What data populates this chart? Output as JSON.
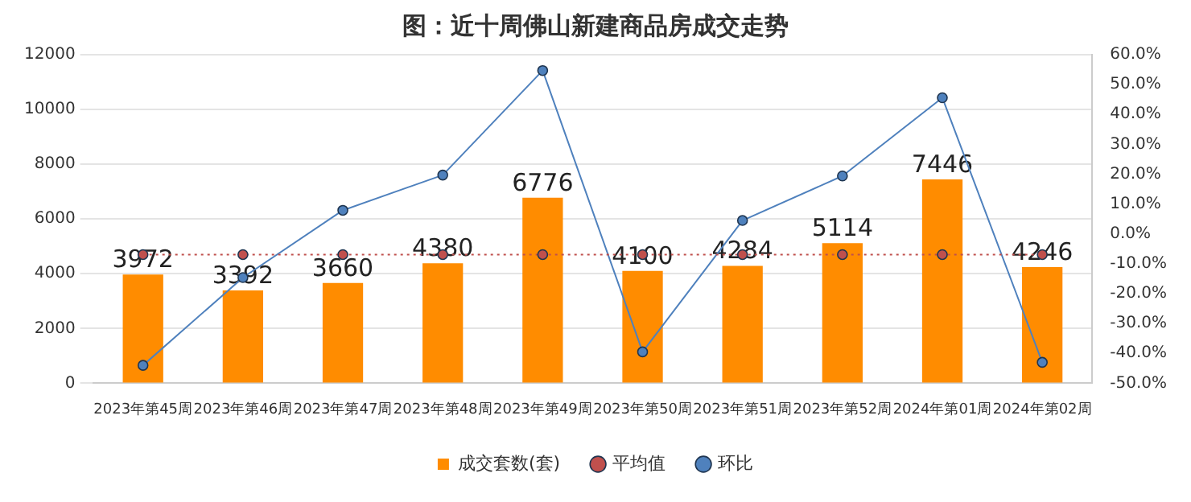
{
  "chart_data": {
    "type": "bar",
    "title": "图：近十周佛山新建商品房成交走势",
    "categories": [
      "2023年第45周",
      "2023年第46周",
      "2023年第47周",
      "2023年第48周",
      "2023年第49周",
      "2023年第50周",
      "2023年第51周",
      "2023年第52周",
      "2024年第01周",
      "2024年第02周"
    ],
    "series": [
      {
        "name": "成交套数(套)",
        "color": "#ff8c00",
        "values": [
          3972,
          3392,
          3660,
          4380,
          6776,
          4100,
          4284,
          5114,
          7446,
          4246
        ],
        "value_labels": [
          "3972",
          "3392",
          "3660",
          "4380",
          "6776",
          "4100",
          "4284",
          "5114",
          "7446",
          "4246"
        ]
      },
      {
        "name": "平均值",
        "type": "line",
        "color": "#c0504d",
        "line_style": "dotted",
        "marker": "circle",
        "values": [
          4700,
          4700,
          4700,
          4700,
          4700,
          4700,
          4700,
          4700,
          4700,
          4700
        ]
      },
      {
        "name": "环比",
        "type": "line",
        "color": "#4f81bd",
        "line_style": "solid",
        "marker": "circle",
        "axis": "y2",
        "values": [
          -44,
          -14.6,
          7.9,
          19.7,
          54.7,
          -39.5,
          4.5,
          19.4,
          45.6,
          -43
        ]
      }
    ],
    "ylim": [
      0,
      12000
    ],
    "yticks": [
      0,
      2000,
      4000,
      6000,
      8000,
      10000,
      12000
    ],
    "y2lim": [
      -50,
      60
    ],
    "y2ticks": [
      {
        "value": -50,
        "label": "-50.0%"
      },
      {
        "value": -40,
        "label": "-40.0%"
      },
      {
        "value": -30,
        "label": "-30.0%"
      },
      {
        "value": -20,
        "label": "-20.0%"
      },
      {
        "value": -10,
        "label": "-10.0%"
      },
      {
        "value": 0,
        "label": "0.0%"
      },
      {
        "value": 10,
        "label": "10.0%"
      },
      {
        "value": 20,
        "label": "20.0%"
      },
      {
        "value": 30,
        "label": "30.0%"
      },
      {
        "value": 40,
        "label": "40.0%"
      },
      {
        "value": 50,
        "label": "50.0%"
      },
      {
        "value": 60,
        "label": "60.0%"
      }
    ],
    "grid": "y",
    "legend": "bottom"
  }
}
